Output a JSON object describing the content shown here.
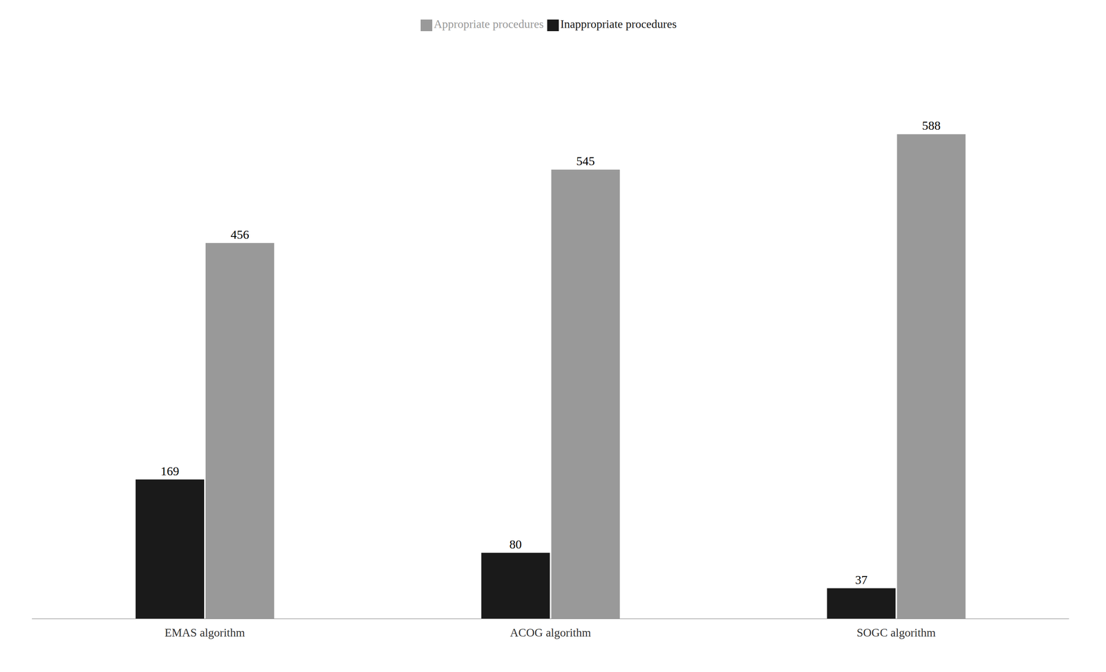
{
  "chart_data": {
    "type": "bar",
    "categories": [
      "EMAS algorithm",
      "ACOG algorithm",
      "SOGC algorithm"
    ],
    "series": [
      {
        "name": "Inappropriate procedures",
        "color": "#1a1a1a",
        "values": [
          169,
          80,
          37
        ]
      },
      {
        "name": "Appropriate procedures",
        "color": "#999999",
        "values": [
          456,
          545,
          588
        ]
      }
    ],
    "ylim": [
      0,
      700
    ],
    "grid": false,
    "legend": "top",
    "data_labels": true,
    "tick_labels": "x"
  }
}
